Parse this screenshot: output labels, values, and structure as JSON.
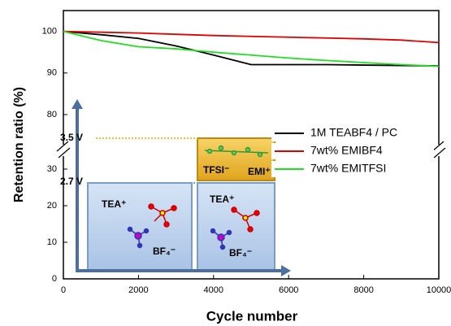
{
  "chart_data": {
    "type": "line",
    "x_label": "Cycle number",
    "y_label": "Retention ratio (%)",
    "x": [
      0,
      1000,
      2000,
      3000,
      4000,
      5000,
      6000,
      7000,
      8000,
      9000,
      10000
    ],
    "xlim": [
      0,
      10000
    ],
    "xticks": [
      0,
      2000,
      4000,
      6000,
      8000,
      10000
    ],
    "ylim": [
      0,
      34
    ],
    "yticks": [
      0,
      10,
      20,
      30
    ],
    "ylim_upper": [
      71,
      105
    ],
    "yticks_upper": [
      80,
      90,
      100
    ],
    "series": [
      {
        "name": "1M TEABF4 / PC",
        "color": "#000000",
        "values": [
          100,
          99.2,
          98.3,
          96.5,
          94.3,
          92,
          92,
          92,
          91.9,
          91.8,
          91.7
        ]
      },
      {
        "name": "7wt% EMIBF4",
        "color": "#e00000",
        "values": [
          100,
          99.8,
          99.6,
          99.3,
          99,
          98.8,
          98.6,
          98.4,
          98.2,
          97.9,
          97.3
        ]
      },
      {
        "name": "7wt% EMITFSI",
        "color": "#22dd22",
        "values": [
          100,
          97.8,
          96.3,
          95.8,
          95,
          94.3,
          93.6,
          93,
          92.5,
          92,
          91.6
        ]
      }
    ],
    "inset": {
      "voltage_high": "3.5 V",
      "voltage_low": "2.7 V",
      "cation_left": "TEA⁺",
      "anion_left": "BF₄⁻",
      "cation_right": "TEA⁺",
      "anion_right": "BF₄⁻",
      "anion_top": "TFSI⁻",
      "cation_top": "EMI⁺"
    }
  }
}
